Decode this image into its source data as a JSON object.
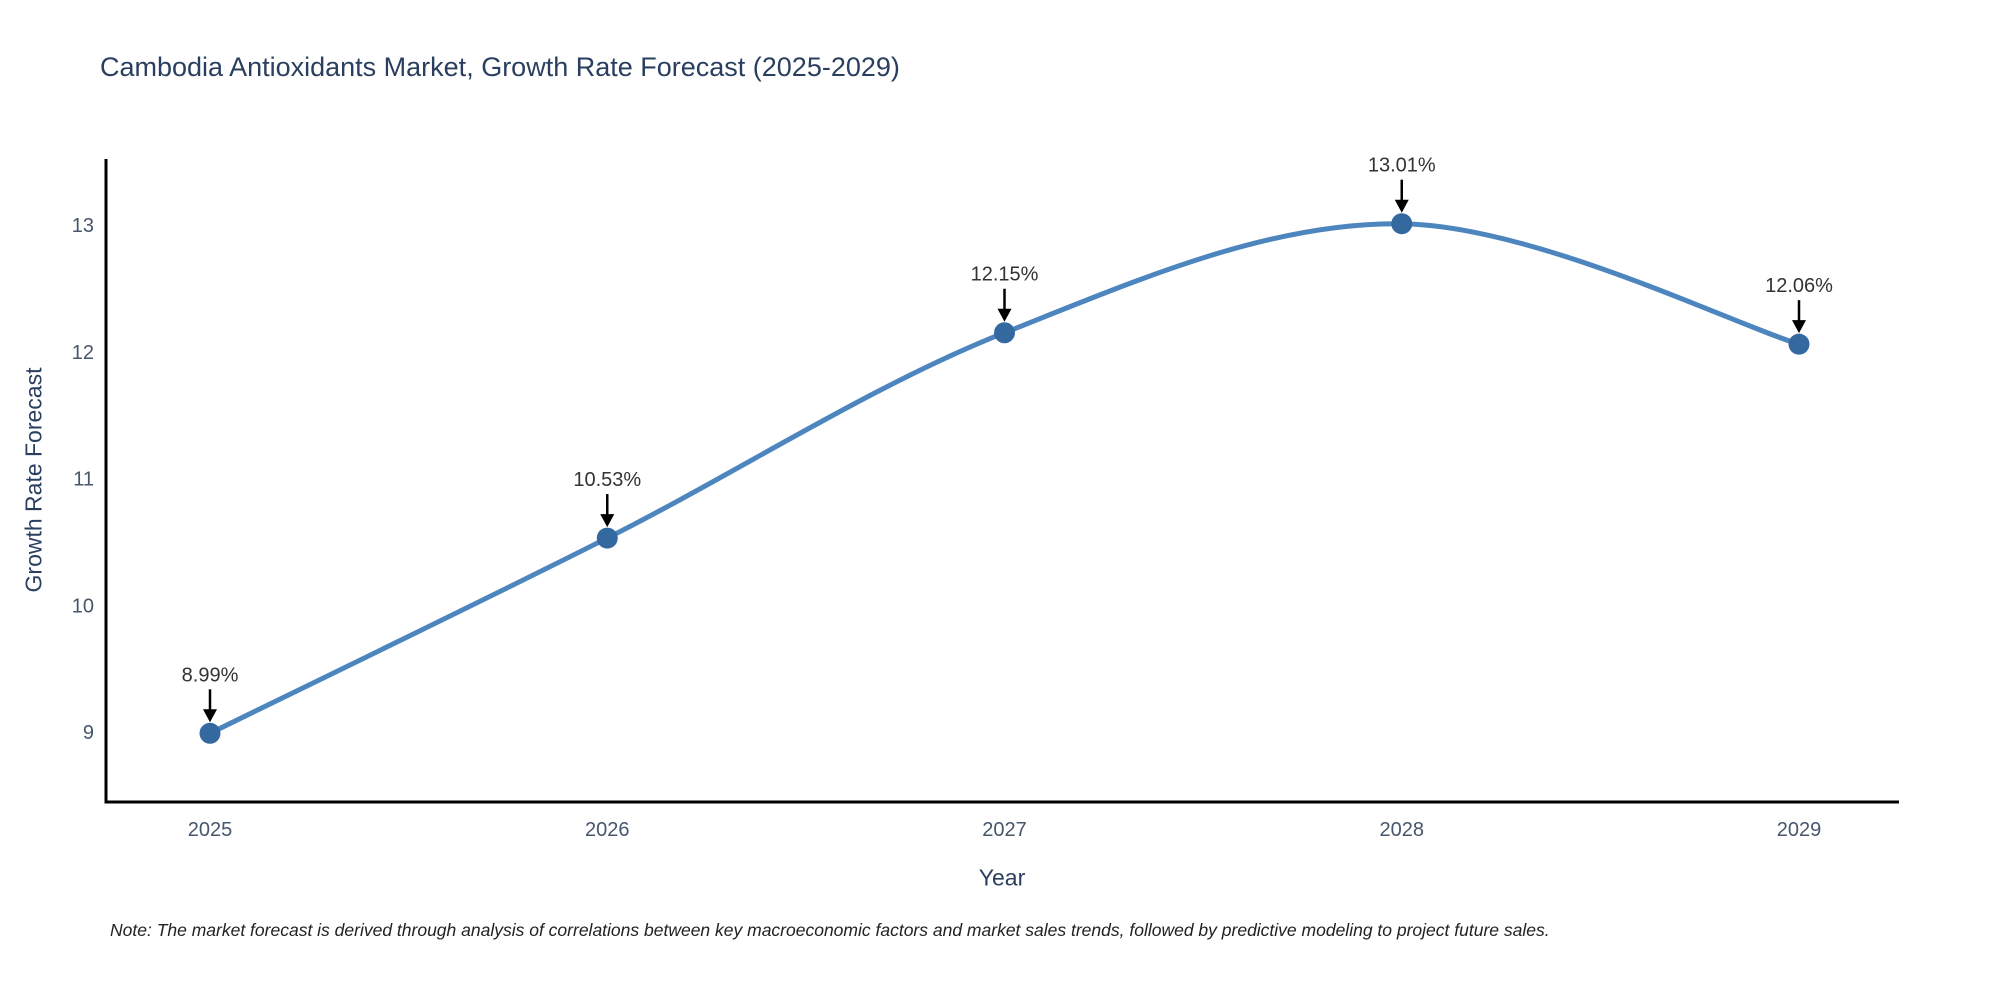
{
  "chart_data": {
    "type": "line",
    "title": "Cambodia Antioxidants Market, Growth Rate Forecast (2025-2029)",
    "xlabel": "Year",
    "ylabel": "Growth Rate Forecast",
    "categories": [
      "2025",
      "2026",
      "2027",
      "2028",
      "2029"
    ],
    "series": [
      {
        "name": "Growth Rate Forecast",
        "values": [
          8.99,
          10.53,
          12.15,
          13.01,
          12.06
        ]
      }
    ],
    "point_labels": [
      "8.99%",
      "10.53%",
      "12.15%",
      "13.01%",
      "12.06%"
    ],
    "y_ticks": [
      9,
      10,
      11,
      12,
      13
    ],
    "ylim": [
      8.45,
      13.55
    ],
    "line_shape": "spline",
    "grid": false,
    "legend_position": "none",
    "colors": {
      "line": "#4d86be",
      "marker": "#34699f",
      "axis": "#000000",
      "title": "#2a3f5f",
      "tick": "#47566b",
      "annotation": "#333333",
      "arrow": "#000000",
      "note": "#222222",
      "background": "#ffffff"
    }
  },
  "footnote": {
    "text": "Note: The market forecast is derived through analysis of correlations between key macroeconomic factors and market sales trends, followed by predictive modeling to project future sales."
  }
}
